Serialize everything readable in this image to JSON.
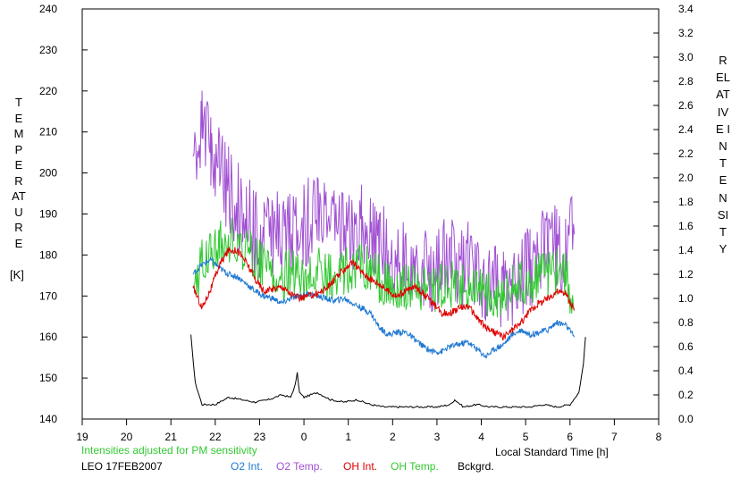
{
  "chart_data": {
    "type": "line",
    "ylabel": "TEMPERATURE",
    "ylabel_unit": "[K]",
    "y2label": "RELATIVE INTENSITY",
    "xlabel": "Local Standard Time [h]",
    "note": "Intensities adjusted for PM sensitivity",
    "site_date": "LEO 17FEB2007",
    "ylim": [
      140,
      240
    ],
    "y2lim": [
      0.0,
      3.4
    ],
    "xlim": [
      19,
      32
    ],
    "x_ticks": [
      "19",
      "20",
      "21",
      "22",
      "23",
      "0",
      "1",
      "2",
      "3",
      "4",
      "5",
      "6",
      "7",
      "8"
    ],
    "y_ticks": [
      "140",
      "150",
      "160",
      "170",
      "180",
      "190",
      "200",
      "210",
      "220",
      "230",
      "240"
    ],
    "y2_ticks": [
      "0.0",
      "0.2",
      "0.4",
      "0.6",
      "0.8",
      "1.0",
      "1.2",
      "1.4",
      "1.6",
      "1.8",
      "2.0",
      "2.2",
      "2.4",
      "2.6",
      "2.8",
      "3.0",
      "3.2",
      "3.4"
    ],
    "grid": false,
    "legend_position": "bottom",
    "colors": {
      "O2 Int.": "#1e78d2",
      "O2 Temp.": "#a050d2",
      "OH Int.": "#e00000",
      "OH Temp.": "#32c832",
      "Bckgrd.": "#000000"
    },
    "series": [
      {
        "name": "O2 Temp.",
        "axis": "left",
        "x": [
          21.5,
          21.7,
          21.9,
          22.1,
          22.3,
          22.5,
          22.7,
          22.9,
          23.1,
          23.3,
          23.5,
          23.7,
          23.9,
          24.1,
          24.3,
          24.5,
          24.7,
          24.9,
          25.1,
          25.3,
          25.5,
          25.7,
          25.9,
          26.1,
          26.3,
          26.5,
          26.7,
          26.9,
          27.1,
          27.3,
          27.5,
          27.7,
          27.9,
          28.1,
          28.3,
          28.5,
          28.7,
          28.9,
          29.1,
          29.3,
          29.5,
          29.7,
          29.9,
          30.1
        ],
        "values": [
          204,
          210,
          207,
          200,
          196,
          192,
          189,
          186,
          185,
          184,
          186,
          186,
          187,
          188,
          190,
          189,
          186,
          185,
          185,
          187,
          185,
          182,
          180,
          181,
          178,
          180,
          178,
          176,
          178,
          180,
          177,
          179,
          176,
          174,
          172,
          173,
          173,
          175,
          177,
          180,
          180,
          183,
          182,
          185
        ]
      },
      {
        "name": "OH Temp.",
        "axis": "left",
        "x": [
          21.5,
          21.7,
          21.9,
          22.1,
          22.3,
          22.5,
          22.7,
          22.9,
          23.1,
          23.3,
          23.5,
          23.7,
          23.9,
          24.1,
          24.3,
          24.5,
          24.7,
          24.9,
          25.1,
          25.3,
          25.5,
          25.7,
          25.9,
          26.1,
          26.3,
          26.5,
          26.7,
          26.9,
          27.1,
          27.3,
          27.5,
          27.7,
          27.9,
          28.1,
          28.3,
          28.5,
          28.7,
          28.9,
          29.1,
          29.3,
          29.5,
          29.7,
          29.9,
          30.1
        ],
        "values": [
          172,
          178,
          182,
          183,
          184,
          183,
          181,
          179,
          177,
          176,
          175,
          176,
          175,
          174,
          176,
          175,
          174,
          176,
          177,
          178,
          176,
          174,
          173,
          173,
          172,
          173,
          172,
          171,
          172,
          173,
          172,
          172,
          171,
          170,
          170,
          171,
          172,
          173,
          174,
          175,
          175,
          176,
          175,
          167
        ]
      },
      {
        "name": "O2 Int.",
        "axis": "right",
        "x": [
          21.5,
          21.7,
          21.9,
          22.1,
          22.3,
          22.5,
          22.7,
          22.9,
          23.1,
          23.3,
          23.5,
          23.7,
          23.9,
          24.1,
          24.3,
          24.5,
          24.7,
          24.9,
          25.1,
          25.3,
          25.5,
          25.7,
          25.9,
          26.1,
          26.3,
          26.5,
          26.7,
          26.9,
          27.1,
          27.3,
          27.5,
          27.7,
          27.9,
          28.1,
          28.3,
          28.5,
          28.7,
          28.9,
          29.1,
          29.3,
          29.5,
          29.7,
          29.9,
          30.1
        ],
        "values": [
          1.2,
          1.28,
          1.32,
          1.25,
          1.2,
          1.18,
          1.12,
          1.06,
          1.02,
          1.0,
          0.96,
          1.0,
          1.02,
          1.04,
          1.02,
          1.0,
          0.98,
          1.0,
          0.96,
          0.92,
          0.88,
          0.76,
          0.7,
          0.72,
          0.72,
          0.66,
          0.6,
          0.56,
          0.56,
          0.6,
          0.62,
          0.64,
          0.58,
          0.52,
          0.58,
          0.62,
          0.7,
          0.74,
          0.7,
          0.72,
          0.74,
          0.8,
          0.78,
          0.68
        ]
      },
      {
        "name": "OH Int.",
        "axis": "right",
        "x": [
          21.5,
          21.7,
          21.9,
          22.1,
          22.3,
          22.5,
          22.7,
          22.9,
          23.1,
          23.3,
          23.5,
          23.7,
          23.9,
          24.1,
          24.3,
          24.5,
          24.7,
          24.9,
          25.1,
          25.3,
          25.5,
          25.7,
          25.9,
          26.1,
          26.3,
          26.5,
          26.7,
          26.9,
          27.1,
          27.3,
          27.5,
          27.7,
          27.9,
          28.1,
          28.3,
          28.5,
          28.7,
          28.9,
          29.1,
          29.3,
          29.5,
          29.7,
          29.9,
          30.1
        ],
        "values": [
          1.1,
          0.92,
          1.08,
          1.28,
          1.4,
          1.4,
          1.3,
          1.16,
          1.06,
          1.08,
          1.1,
          1.04,
          1.0,
          1.02,
          1.04,
          1.08,
          1.16,
          1.24,
          1.3,
          1.22,
          1.16,
          1.12,
          1.06,
          1.02,
          1.06,
          1.1,
          1.04,
          0.96,
          0.88,
          0.88,
          0.92,
          0.94,
          0.84,
          0.76,
          0.72,
          0.68,
          0.74,
          0.8,
          0.9,
          0.96,
          1.0,
          1.06,
          1.04,
          0.9
        ]
      },
      {
        "name": "Bckgrd.",
        "axis": "right",
        "x": [
          21.45,
          21.55,
          21.7,
          22.0,
          22.3,
          22.6,
          22.9,
          23.2,
          23.5,
          23.7,
          23.8,
          23.85,
          23.9,
          24.0,
          24.3,
          24.6,
          24.9,
          25.2,
          25.5,
          25.8,
          26.1,
          26.4,
          26.7,
          27.0,
          27.3,
          27.4,
          27.6,
          27.9,
          28.2,
          28.5,
          28.8,
          29.1,
          29.4,
          29.7,
          30.0,
          30.2,
          30.3,
          30.35
        ],
        "values": [
          0.7,
          0.3,
          0.12,
          0.12,
          0.18,
          0.16,
          0.14,
          0.16,
          0.2,
          0.18,
          0.28,
          0.38,
          0.22,
          0.18,
          0.22,
          0.16,
          0.14,
          0.16,
          0.12,
          0.1,
          0.1,
          0.1,
          0.1,
          0.1,
          0.12,
          0.16,
          0.1,
          0.12,
          0.1,
          0.1,
          0.1,
          0.1,
          0.12,
          0.1,
          0.12,
          0.22,
          0.45,
          0.68
        ]
      }
    ]
  }
}
